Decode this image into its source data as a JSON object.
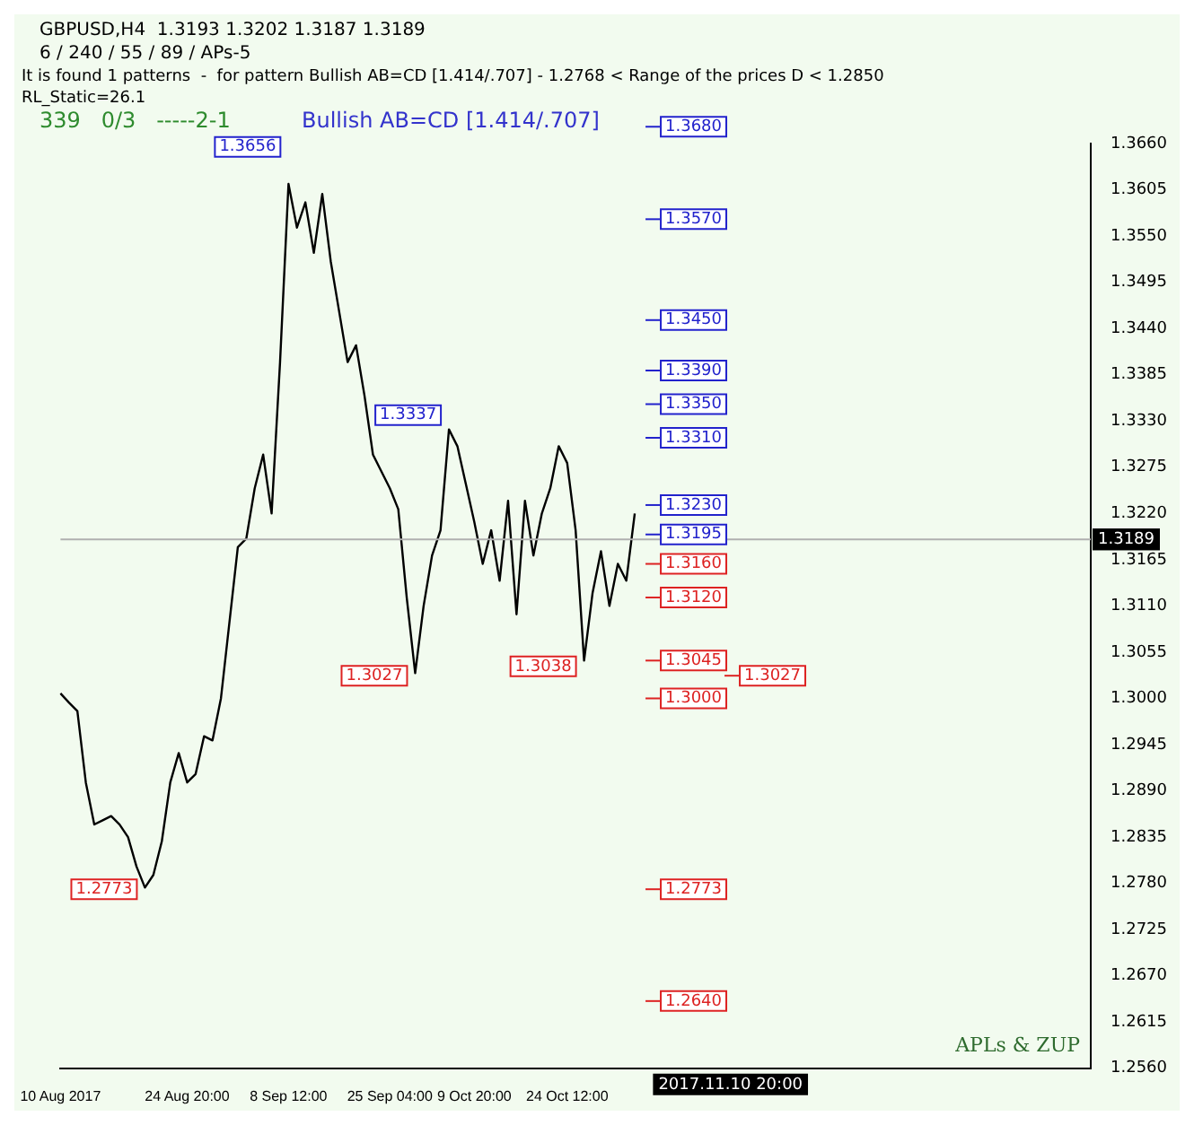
{
  "chart_data": {
    "type": "line",
    "title": "GBPUSD,H4  1.3193 1.3202 1.3187 1.3189",
    "subtitle": "6 / 240 / 55 / 89 / APs-5",
    "categories": [
      "10 Aug 2017",
      null,
      null,
      null,
      null,
      null,
      null,
      null,
      null,
      null,
      null,
      null,
      null,
      null,
      null,
      "24 Aug 20:00",
      null,
      null,
      null,
      null,
      null,
      null,
      null,
      null,
      null,
      null,
      null,
      "8 Sep 12:00",
      null,
      null,
      null,
      null,
      null,
      null,
      null,
      null,
      null,
      null,
      null,
      "25 Sep 04:00",
      null,
      null,
      null,
      null,
      null,
      null,
      null,
      null,
      null,
      "9 Oct 20:00",
      null,
      null,
      null,
      null,
      null,
      null,
      null,
      null,
      null,
      null,
      "24 Oct 12:00",
      null,
      null,
      null,
      null,
      null,
      null,
      null,
      null,
      null,
      null,
      null,
      null,
      null,
      null,
      null,
      null,
      null,
      null,
      null,
      null,
      null,
      null,
      null,
      null,
      null,
      null,
      null,
      null,
      null,
      null,
      null,
      null,
      null,
      null,
      null,
      null,
      null,
      null,
      null,
      null,
      null,
      null,
      null,
      null,
      null,
      null,
      null,
      null,
      null,
      null,
      null,
      null,
      null,
      null,
      null,
      null,
      null,
      null,
      null,
      null,
      null,
      null
    ],
    "series": [
      {
        "color": "#000000",
        "values": [
          1.3006,
          1.2995,
          1.2985,
          1.29,
          1.285,
          1.2855,
          1.286,
          1.285,
          1.2835,
          1.28,
          1.2775,
          1.279,
          1.283,
          1.29,
          1.2935,
          1.29,
          1.291,
          1.2955,
          1.295,
          1.3,
          1.309,
          1.318,
          1.319,
          1.325,
          1.329,
          1.322,
          1.34,
          1.3612,
          1.356,
          1.359,
          1.353,
          1.36,
          1.352,
          1.346,
          1.34,
          1.342,
          1.336,
          1.329,
          1.327,
          1.325,
          1.3225,
          1.312,
          1.303,
          1.311,
          1.317,
          1.32,
          1.332,
          1.33,
          1.3255,
          1.321,
          1.316,
          1.32,
          1.314,
          1.3235,
          1.31,
          1.3235,
          1.317,
          1.322,
          1.325,
          1.33,
          1.328,
          1.32,
          1.3045,
          1.3125,
          1.3175,
          1.311,
          1.316,
          1.314,
          1.322,
          null,
          null,
          null,
          null,
          null,
          null,
          null,
          null,
          null,
          null,
          null,
          null,
          null,
          null,
          null,
          null,
          null,
          null,
          null,
          null,
          null,
          null,
          null,
          null,
          null,
          null,
          null,
          null,
          null,
          null,
          null,
          null,
          null,
          null,
          null,
          null,
          null,
          null,
          null,
          null,
          null,
          null,
          null,
          null,
          null,
          null,
          null,
          null,
          null,
          null,
          null,
          null,
          null,
          null
        ]
      }
    ],
    "ylim": [
      1.256,
      1.366
    ],
    "yticks": [
      {
        "value": 1.256,
        "label": "1.2560"
      },
      {
        "value": 1.2615,
        "label": "1.2615"
      },
      {
        "value": 1.267,
        "label": "1.2670"
      },
      {
        "value": 1.2725,
        "label": "1.2725"
      },
      {
        "value": 1.278,
        "label": "1.2780"
      },
      {
        "value": 1.2835,
        "label": "1.2835"
      },
      {
        "value": 1.289,
        "label": "1.2890"
      },
      {
        "value": 1.2945,
        "label": "1.2945"
      },
      {
        "value": 1.3,
        "label": "1.3000"
      },
      {
        "value": 1.3055,
        "label": "1.3055"
      },
      {
        "value": 1.311,
        "label": "1.3110"
      },
      {
        "value": 1.3165,
        "label": "1.3165"
      },
      {
        "value": 1.322,
        "label": "1.3220"
      },
      {
        "value": 1.3275,
        "label": "1.3275"
      },
      {
        "value": 1.333,
        "label": "1.3330"
      },
      {
        "value": 1.3385,
        "label": "1.3385"
      },
      {
        "value": 1.344,
        "label": "1.3440"
      },
      {
        "value": 1.3495,
        "label": "1.3495"
      },
      {
        "value": 1.355,
        "label": "1.3550"
      },
      {
        "value": 1.3605,
        "label": "1.3605"
      },
      {
        "value": 1.366,
        "label": "1.3660"
      }
    ],
    "ref_lines": [
      {
        "axis": "y",
        "value": 1.3189,
        "label": "1.3189",
        "color": "#b0b0b0"
      },
      {
        "axis": "y",
        "value": 1.368,
        "label": "1.3680",
        "color": "#2222cc"
      },
      {
        "axis": "y",
        "value": 1.357,
        "label": "1.3570",
        "color": "#2222cc"
      },
      {
        "axis": "y",
        "value": 1.345,
        "label": "1.3450",
        "color": "#2222cc"
      },
      {
        "axis": "y",
        "value": 1.339,
        "label": "1.3390",
        "color": "#2222cc"
      },
      {
        "axis": "y",
        "value": 1.335,
        "label": "1.3350",
        "color": "#2222cc"
      },
      {
        "axis": "y",
        "value": 1.331,
        "label": "1.3310",
        "color": "#2222cc"
      },
      {
        "axis": "y",
        "value": 1.323,
        "label": "1.3230",
        "color": "#2222cc"
      },
      {
        "axis": "y",
        "value": 1.3195,
        "label": "1.3195",
        "color": "#2222cc"
      },
      {
        "axis": "y",
        "value": 1.316,
        "label": "1.3160",
        "color": "#dd2222"
      },
      {
        "axis": "y",
        "value": 1.312,
        "label": "1.3120",
        "color": "#dd2222"
      },
      {
        "axis": "y",
        "value": 1.3045,
        "label": "1.3045",
        "color": "#dd2222"
      },
      {
        "axis": "y",
        "value": 1.3027,
        "label": "1.3027",
        "color": "#dd2222"
      },
      {
        "axis": "y",
        "value": 1.3,
        "label": "1.3000",
        "color": "#dd2222"
      },
      {
        "axis": "y",
        "value": 1.2773,
        "label": "1.2773",
        "color": "#dd2222"
      },
      {
        "axis": "y",
        "value": 1.264,
        "label": "1.2640",
        "color": "#dd2222"
      }
    ],
    "annotations": [
      "It is found 1 patterns  -  for pattern Bullish AB=CD [1.414/.707] - 1.2768 < Range of the prices D < 1.2850",
      "RL_Static=26.1",
      "339   0/3   -----2-1",
      "Bullish AB=CD [1.414/.707]",
      "APLs & ZUP",
      "2017.11.10 20:00",
      {
        "text": "1.3656",
        "y": 1.3656
      },
      {
        "text": "1.3337",
        "y": 1.3337
      },
      {
        "text": "1.3027",
        "y": 1.3027
      },
      {
        "text": "1.3038",
        "y": 1.3038
      },
      {
        "text": "1.2773",
        "y": 1.2773
      }
    ],
    "grid": false,
    "legend": false,
    "marker": "none",
    "line_style": "solid"
  }
}
